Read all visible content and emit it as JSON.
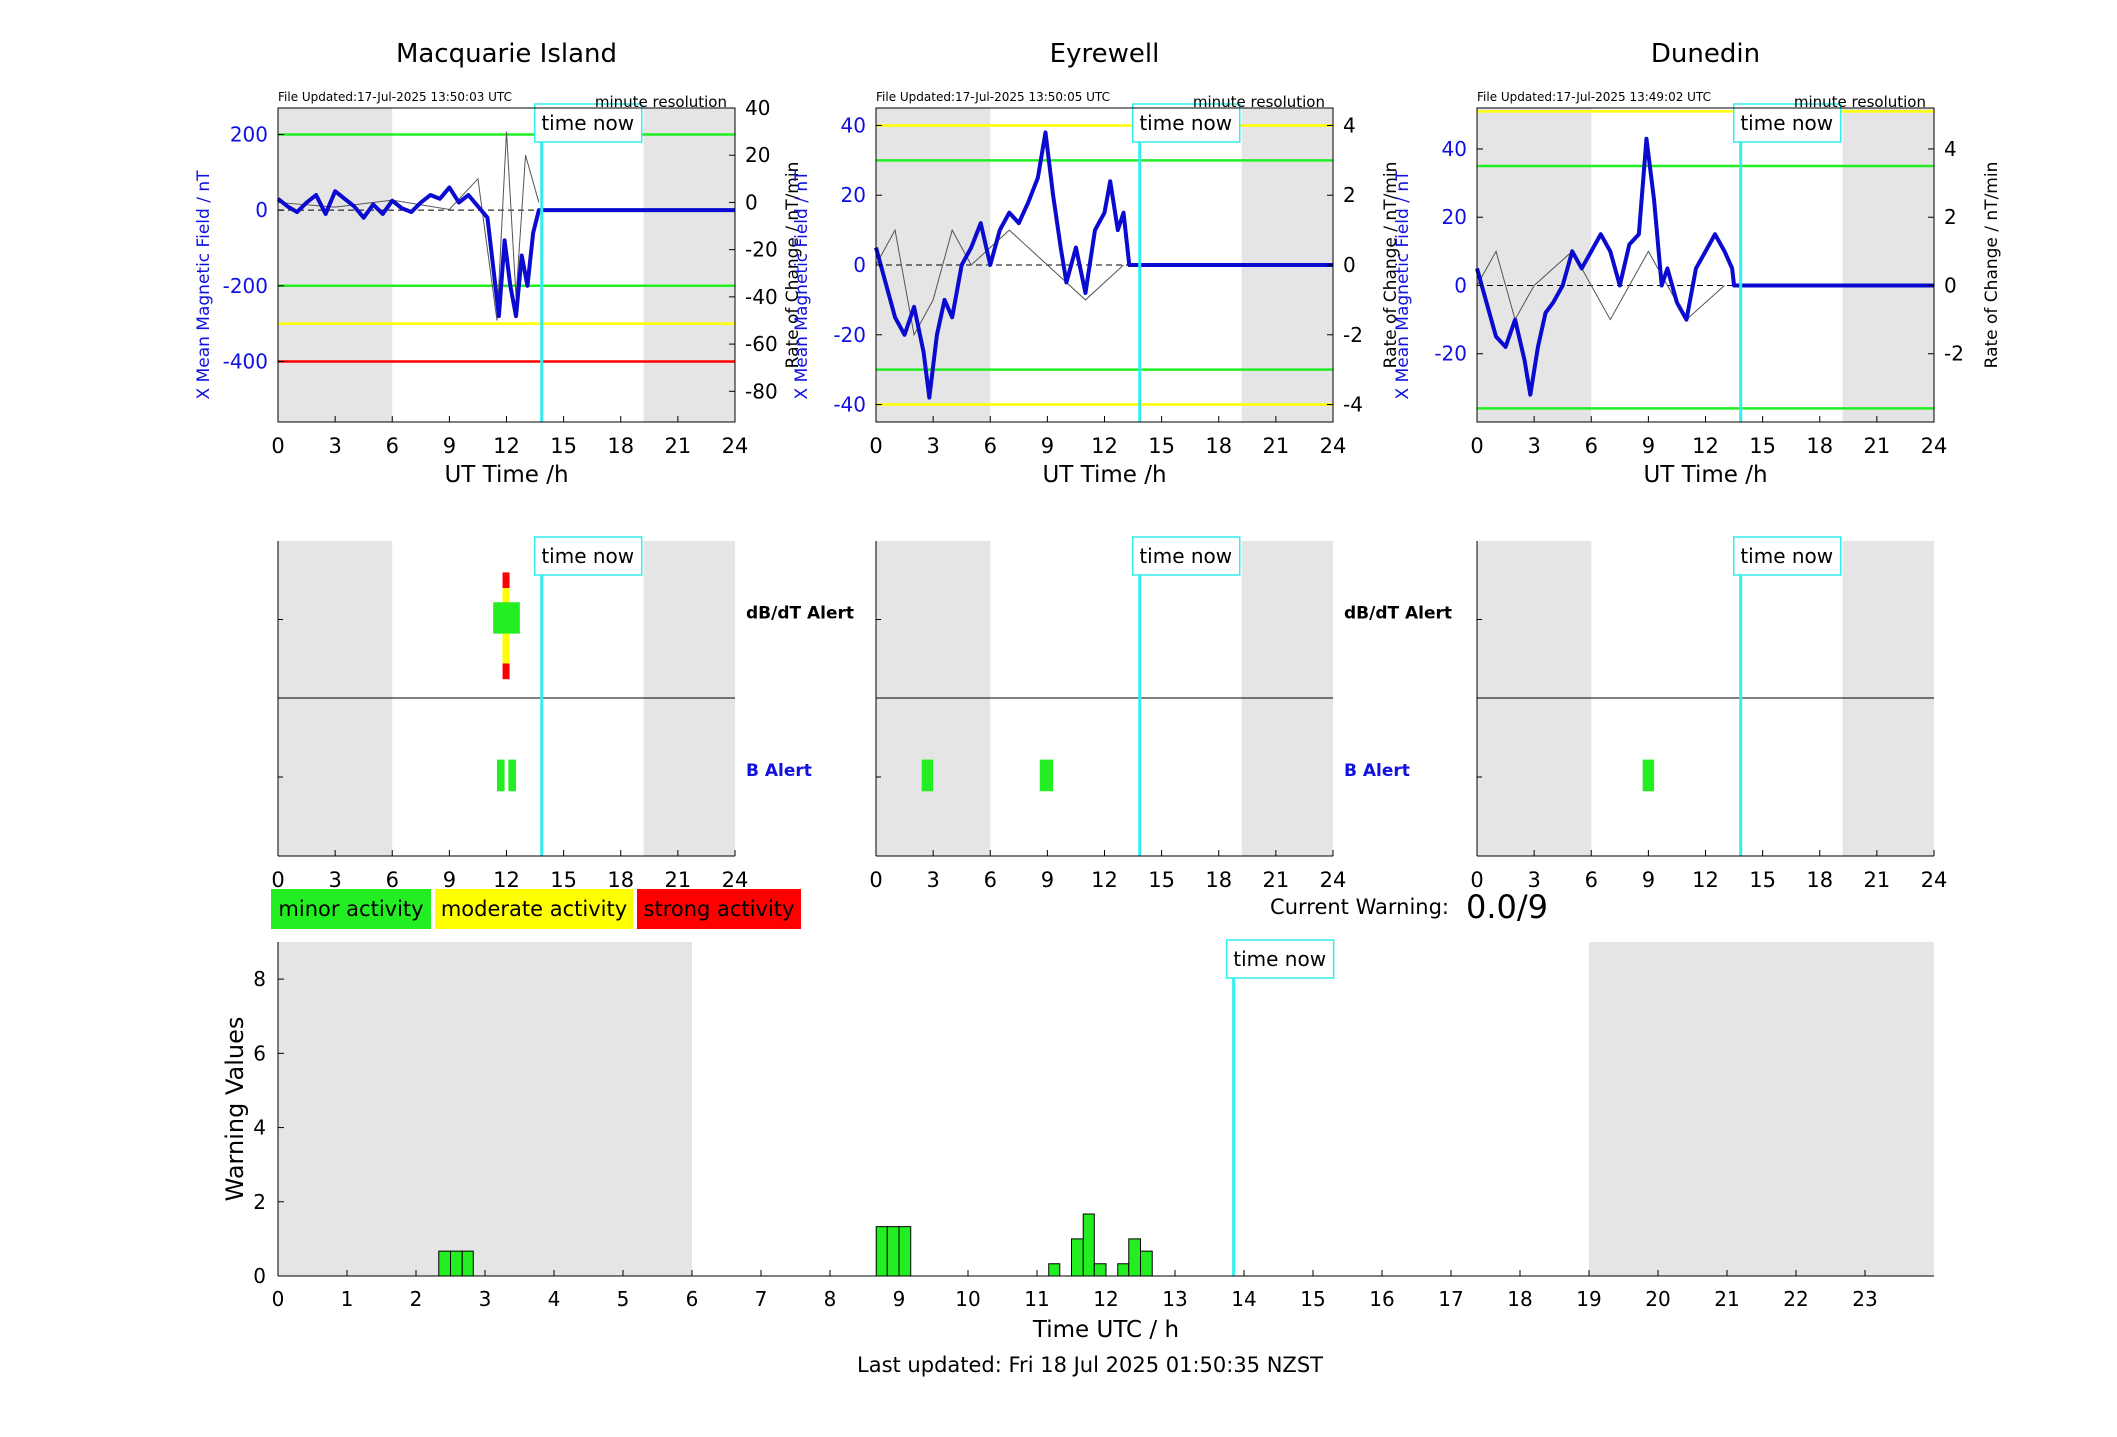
{
  "colors": {
    "shade": "#e5e5e5",
    "field_line": "#0a0ad0",
    "rate_line": "#555555",
    "now_line": "#33eeee",
    "green": "#22ee22",
    "yellow": "#ffff00",
    "red": "#ff0000",
    "blue_text": "#1010e0"
  },
  "now_label": "time now",
  "now_hour": 13.85,
  "shade_hours": [
    [
      0,
      6
    ],
    [
      19.2,
      24
    ]
  ],
  "station_xticks": [
    "0",
    "3",
    "6",
    "9",
    "12",
    "15",
    "18",
    "21",
    "24"
  ],
  "stations": [
    {
      "name": "Macquarie Island",
      "file_updated": "File Updated:17-Jul-2025 13:50:03 UTC",
      "resolution": "minute resolution",
      "ylabel_left": "X Mean Magnetic Field / nT",
      "ylabel_right": "Rate of Change / nT/min",
      "xlabel": "UT Time /h",
      "left_ylim": [
        -560,
        270
      ],
      "left_ticks": [
        "200",
        "0",
        "-200",
        "-400"
      ],
      "left_tick_values": [
        200,
        0,
        -200,
        -400
      ],
      "right_ylim": [
        -93,
        40
      ],
      "right_ticks": [
        "40",
        "20",
        "0",
        "-20",
        "-40",
        "-60",
        "-80"
      ],
      "right_tick_values": [
        40,
        20,
        0,
        -20,
        -40,
        -60,
        -80
      ],
      "thresholds": [
        {
          "value": 200,
          "color": "green"
        },
        {
          "value": -200,
          "color": "green"
        },
        {
          "value": -300,
          "color": "yellow"
        },
        {
          "value": -400,
          "color": "red"
        }
      ],
      "field_series": [
        [
          0,
          30
        ],
        [
          0.5,
          10
        ],
        [
          1,
          -5
        ],
        [
          1.5,
          20
        ],
        [
          2,
          40
        ],
        [
          2.5,
          -10
        ],
        [
          3,
          50
        ],
        [
          3.5,
          30
        ],
        [
          4,
          10
        ],
        [
          4.5,
          -20
        ],
        [
          5,
          15
        ],
        [
          5.5,
          -10
        ],
        [
          6,
          25
        ],
        [
          6.5,
          5
        ],
        [
          7,
          -5
        ],
        [
          7.5,
          20
        ],
        [
          8,
          40
        ],
        [
          8.5,
          30
        ],
        [
          9,
          60
        ],
        [
          9.5,
          20
        ],
        [
          10,
          40
        ],
        [
          10.5,
          10
        ],
        [
          11,
          -20
        ],
        [
          11.3,
          -150
        ],
        [
          11.6,
          -280
        ],
        [
          11.9,
          -80
        ],
        [
          12.2,
          -200
        ],
        [
          12.5,
          -280
        ],
        [
          12.8,
          -120
        ],
        [
          13.1,
          -200
        ],
        [
          13.4,
          -60
        ],
        [
          13.7,
          0
        ],
        [
          14,
          0
        ],
        [
          24,
          0
        ]
      ],
      "rate_series": [
        [
          0,
          0
        ],
        [
          3,
          -2
        ],
        [
          6,
          1
        ],
        [
          9,
          -3
        ],
        [
          10.5,
          10
        ],
        [
          11.5,
          -50
        ],
        [
          12,
          30
        ],
        [
          12.5,
          -40
        ],
        [
          13,
          20
        ],
        [
          13.7,
          0
        ]
      ],
      "db_dt_alert": [
        {
          "start": 11.3,
          "end": 12.7,
          "level": "minor"
        }
      ],
      "db_dt_spike": {
        "hour": 11.95,
        "colors": [
          "red",
          "yellow",
          "red"
        ]
      },
      "b_alert": [
        {
          "start": 11.5,
          "end": 11.9
        },
        {
          "start": 12.1,
          "end": 12.5
        }
      ],
      "alert_labels": {
        "top": "dB/dT Alert",
        "bottom": "B Alert"
      }
    },
    {
      "name": "Eyrewell",
      "file_updated": "File Updated:17-Jul-2025 13:50:05 UTC",
      "resolution": "minute resolution",
      "ylabel_left": "X Mean Magnetic Field / nT",
      "ylabel_right": "Rate of Change / nT/min",
      "xlabel": "UT Time /h",
      "left_ylim": [
        -45,
        45
      ],
      "left_ticks": [
        "40",
        "20",
        "0",
        "-20",
        "-40"
      ],
      "left_tick_values": [
        40,
        20,
        0,
        -20,
        -40
      ],
      "right_ylim": [
        -4.5,
        4.5
      ],
      "right_ticks": [
        "4",
        "2",
        "0",
        "-2",
        "-4"
      ],
      "right_tick_values": [
        4,
        2,
        0,
        -2,
        -4
      ],
      "thresholds": [
        {
          "value": 40,
          "color": "yellow"
        },
        {
          "value": 30,
          "color": "green"
        },
        {
          "value": -30,
          "color": "green"
        },
        {
          "value": -40,
          "color": "yellow"
        }
      ],
      "field_series": [
        [
          0,
          5
        ],
        [
          0.5,
          -5
        ],
        [
          1,
          -15
        ],
        [
          1.5,
          -20
        ],
        [
          2,
          -12
        ],
        [
          2.5,
          -25
        ],
        [
          2.8,
          -38
        ],
        [
          3.2,
          -20
        ],
        [
          3.6,
          -10
        ],
        [
          4,
          -15
        ],
        [
          4.5,
          0
        ],
        [
          5,
          5
        ],
        [
          5.5,
          12
        ],
        [
          6,
          0
        ],
        [
          6.5,
          10
        ],
        [
          7,
          15
        ],
        [
          7.5,
          12
        ],
        [
          8,
          18
        ],
        [
          8.5,
          25
        ],
        [
          8.9,
          38
        ],
        [
          9.3,
          20
        ],
        [
          9.7,
          5
        ],
        [
          10,
          -5
        ],
        [
          10.5,
          5
        ],
        [
          11,
          -8
        ],
        [
          11.5,
          10
        ],
        [
          12,
          15
        ],
        [
          12.3,
          24
        ],
        [
          12.7,
          10
        ],
        [
          13,
          15
        ],
        [
          13.3,
          0
        ],
        [
          24,
          0
        ]
      ],
      "rate_series": [
        [
          0,
          0
        ],
        [
          1,
          1
        ],
        [
          2,
          -2
        ],
        [
          3,
          -1
        ],
        [
          4,
          1
        ],
        [
          5,
          0
        ],
        [
          7,
          1
        ],
        [
          9,
          0
        ],
        [
          11,
          -1
        ],
        [
          13,
          0
        ]
      ],
      "db_dt_alert": [],
      "db_dt_spike": null,
      "b_alert": [
        {
          "start": 2.4,
          "end": 3.0
        },
        {
          "start": 8.6,
          "end": 9.3
        }
      ],
      "alert_labels": {
        "top": "dB/dT Alert",
        "bottom": "B Alert"
      }
    },
    {
      "name": "Dunedin",
      "file_updated": "File Updated:17-Jul-2025 13:49:02 UTC",
      "resolution": "minute resolution",
      "ylabel_left": "X Mean Magnetic Field / nT",
      "ylabel_right": "Rate of Change / nT/min",
      "xlabel": "UT Time /h",
      "left_ylim": [
        -40,
        52
      ],
      "left_ticks": [
        "40",
        "20",
        "0",
        "-20"
      ],
      "left_tick_values": [
        40,
        20,
        0,
        -20
      ],
      "right_ylim": [
        -4.0,
        5.2
      ],
      "right_ticks": [
        "4",
        "2",
        "0",
        "-2"
      ],
      "right_tick_values": [
        4,
        2,
        0,
        -2
      ],
      "thresholds": [
        {
          "value": 51,
          "color": "yellow"
        },
        {
          "value": 35,
          "color": "green"
        },
        {
          "value": -36,
          "color": "green"
        }
      ],
      "field_series": [
        [
          0,
          5
        ],
        [
          0.5,
          -5
        ],
        [
          1,
          -15
        ],
        [
          1.5,
          -18
        ],
        [
          2,
          -10
        ],
        [
          2.5,
          -22
        ],
        [
          2.8,
          -32
        ],
        [
          3.2,
          -18
        ],
        [
          3.6,
          -8
        ],
        [
          4,
          -5
        ],
        [
          4.5,
          0
        ],
        [
          5,
          10
        ],
        [
          5.5,
          5
        ],
        [
          6,
          10
        ],
        [
          6.5,
          15
        ],
        [
          7,
          10
        ],
        [
          7.5,
          0
        ],
        [
          8,
          12
        ],
        [
          8.5,
          15
        ],
        [
          8.9,
          43
        ],
        [
          9.3,
          25
        ],
        [
          9.7,
          0
        ],
        [
          10,
          5
        ],
        [
          10.5,
          -5
        ],
        [
          11,
          -10
        ],
        [
          11.5,
          5
        ],
        [
          12,
          10
        ],
        [
          12.5,
          15
        ],
        [
          13,
          10
        ],
        [
          13.4,
          5
        ],
        [
          13.5,
          0
        ],
        [
          24,
          0
        ]
      ],
      "rate_series": [
        [
          0,
          0
        ],
        [
          1,
          1
        ],
        [
          2,
          -1
        ],
        [
          3,
          0
        ],
        [
          5,
          1
        ],
        [
          7,
          -1
        ],
        [
          9,
          1
        ],
        [
          11,
          -1
        ],
        [
          13,
          0
        ]
      ],
      "db_dt_alert": [],
      "db_dt_spike": null,
      "b_alert": [
        {
          "start": 8.7,
          "end": 9.3
        }
      ],
      "alert_labels": {
        "top": "",
        "bottom": ""
      }
    }
  ],
  "legend": [
    {
      "label": "minor activity",
      "color": "green"
    },
    {
      "label": "moderate activity",
      "color": "yellow"
    },
    {
      "label": "strong activity",
      "color": "red"
    }
  ],
  "current_warning_label": "Current Warning:",
  "current_warning_value": "0.0/9",
  "chart_data": {
    "type": "bar",
    "xlabel": "Time UTC / h",
    "ylabel": "Warning Values",
    "xlim": [
      0,
      24
    ],
    "ylim": [
      0,
      9
    ],
    "yticks": [
      "0",
      "2",
      "4",
      "6",
      "8"
    ],
    "xticks": [
      "0",
      "1",
      "2",
      "3",
      "4",
      "5",
      "6",
      "7",
      "8",
      "9",
      "10",
      "11",
      "12",
      "13",
      "14",
      "15",
      "16",
      "17",
      "18",
      "19",
      "20",
      "21",
      "22",
      "23"
    ],
    "shade_hours": [
      [
        0,
        6
      ],
      [
        19,
        24
      ]
    ],
    "now_hour": 13.85,
    "bars": [
      {
        "start": 2.33,
        "end": 2.5,
        "value": 0.67
      },
      {
        "start": 2.5,
        "end": 2.67,
        "value": 0.67
      },
      {
        "start": 2.67,
        "end": 2.83,
        "value": 0.67
      },
      {
        "start": 8.67,
        "end": 8.83,
        "value": 1.33
      },
      {
        "start": 8.83,
        "end": 9.0,
        "value": 1.33
      },
      {
        "start": 9.0,
        "end": 9.17,
        "value": 1.33
      },
      {
        "start": 11.17,
        "end": 11.33,
        "value": 0.33
      },
      {
        "start": 11.5,
        "end": 11.67,
        "value": 1.0
      },
      {
        "start": 11.67,
        "end": 11.83,
        "value": 1.67
      },
      {
        "start": 11.83,
        "end": 12.0,
        "value": 0.33
      },
      {
        "start": 12.17,
        "end": 12.33,
        "value": 0.33
      },
      {
        "start": 12.33,
        "end": 12.5,
        "value": 1.0
      },
      {
        "start": 12.5,
        "end": 12.67,
        "value": 0.67
      }
    ]
  },
  "last_updated": "Last updated: Fri 18 Jul 2025 01:50:35 NZST"
}
